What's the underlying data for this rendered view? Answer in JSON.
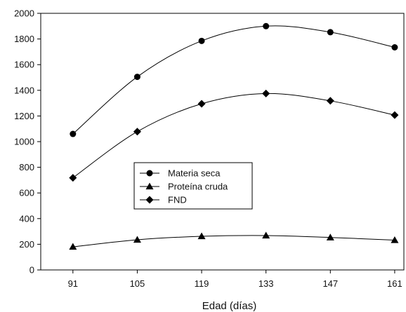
{
  "chart_data": {
    "type": "line",
    "title": "",
    "xlabel": "Edad (días)",
    "ylabel": "",
    "x": [
      91,
      105,
      119,
      133,
      147,
      161
    ],
    "x_tick_labels": [
      "91",
      "105",
      "119",
      "133",
      "147",
      "161"
    ],
    "xlim": [
      84,
      163
    ],
    "ylim": [
      0,
      2000
    ],
    "y_ticks": [
      0,
      200,
      400,
      600,
      800,
      1000,
      1200,
      1400,
      1600,
      1800,
      2000
    ],
    "grid": false,
    "legend_position": "center-left",
    "series": [
      {
        "name": "Materia seca",
        "marker": "circle",
        "values": [
          1060,
          1505,
          1785,
          1900,
          1853,
          1735
        ]
      },
      {
        "name": "Proteína cruda",
        "marker": "triangle",
        "values": [
          180,
          235,
          262,
          268,
          253,
          232
        ]
      },
      {
        "name": "FND",
        "marker": "diamond",
        "values": [
          718,
          1078,
          1295,
          1375,
          1318,
          1207
        ]
      }
    ],
    "line_color": "#000000"
  }
}
